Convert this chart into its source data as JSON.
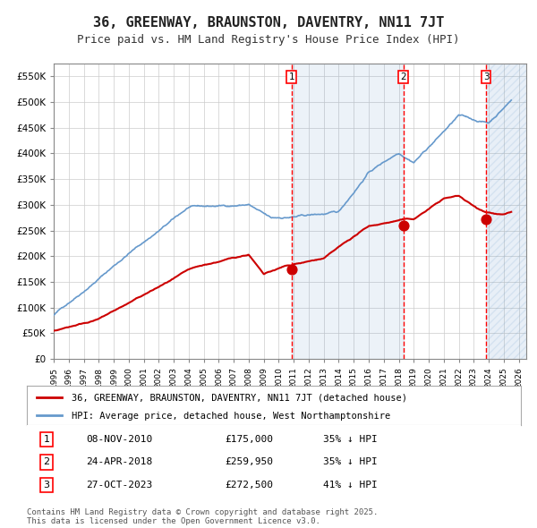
{
  "title": "36, GREENWAY, BRAUNSTON, DAVENTRY, NN11 7JT",
  "subtitle": "Price paid vs. HM Land Registry's House Price Index (HPI)",
  "xlabel": "",
  "ylabel": "",
  "ylim": [
    0,
    575000
  ],
  "yticks": [
    0,
    50000,
    100000,
    150000,
    200000,
    250000,
    300000,
    350000,
    400000,
    450000,
    500000,
    550000
  ],
  "ytick_labels": [
    "£0",
    "£50K",
    "£100K",
    "£150K",
    "£200K",
    "£250K",
    "£300K",
    "£350K",
    "£400K",
    "£450K",
    "£500K",
    "£550K"
  ],
  "xlim_start": 1995.0,
  "xlim_end": 2026.5,
  "xtick_years": [
    1995,
    1996,
    1997,
    1998,
    1999,
    2000,
    2001,
    2002,
    2003,
    2004,
    2005,
    2006,
    2007,
    2008,
    2009,
    2010,
    2011,
    2012,
    2013,
    2014,
    2015,
    2016,
    2017,
    2018,
    2019,
    2020,
    2021,
    2022,
    2023,
    2024,
    2025,
    2026
  ],
  "sale_dates": [
    2010.86,
    2018.31,
    2023.82
  ],
  "sale_prices": [
    175000,
    259950,
    272500
  ],
  "sale_labels": [
    "1",
    "2",
    "3"
  ],
  "legend_red": "36, GREENWAY, BRAUNSTON, DAVENTRY, NN11 7JT (detached house)",
  "legend_blue": "HPI: Average price, detached house, West Northamptonshire",
  "annotations": [
    {
      "num": "1",
      "date": "08-NOV-2010",
      "price": "£175,000",
      "pct": "35% ↓ HPI"
    },
    {
      "num": "2",
      "date": "24-APR-2018",
      "price": "£259,950",
      "pct": "35% ↓ HPI"
    },
    {
      "num": "3",
      "date": "27-OCT-2023",
      "price": "£272,500",
      "pct": "41% ↓ HPI"
    }
  ],
  "footnote": "Contains HM Land Registry data © Crown copyright and database right 2025.\nThis data is licensed under the Open Government Licence v3.0.",
  "red_color": "#cc0000",
  "blue_color": "#6699cc",
  "bg_color": "#f0f4ff",
  "hatch_color": "#c0c8e0",
  "grid_color": "#cccccc",
  "title_fontsize": 11,
  "subtitle_fontsize": 9,
  "axis_fontsize": 7.5,
  "legend_fontsize": 8,
  "annot_fontsize": 8
}
